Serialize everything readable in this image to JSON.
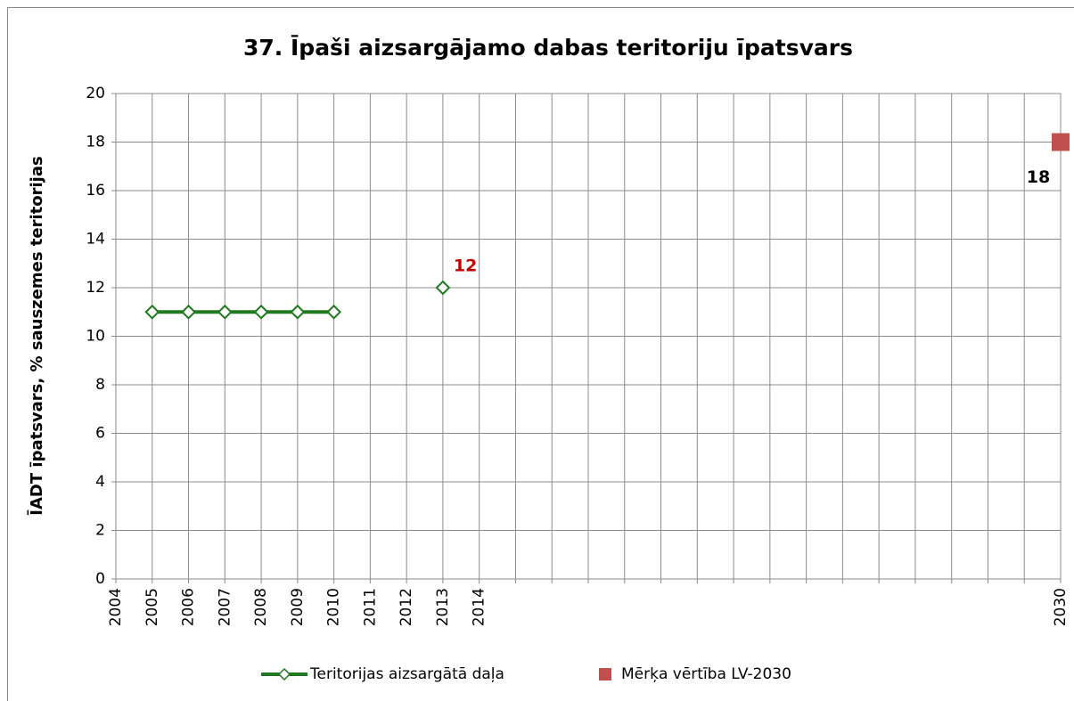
{
  "chart_data": {
    "type": "line",
    "title": "37. Īpaši aizsargājamo dabas teritoriju īpatsvars",
    "y_label": "ĪADT īpatsvars, % sauszemes teritorijas",
    "categories": [
      "2004",
      "2005",
      "2006",
      "2007",
      "2008",
      "2009",
      "2010",
      "2011",
      "2012",
      "2013",
      "2014",
      null,
      null,
      null,
      null,
      null,
      null,
      null,
      null,
      null,
      null,
      null,
      null,
      null,
      null,
      null,
      "2030"
    ],
    "series": [
      {
        "name": "Teritorijas aizsargātā daļa",
        "color": "#1f7a1f",
        "marker": "diamond",
        "values": [
          null,
          11,
          11,
          11,
          11,
          11,
          11,
          null,
          null,
          12,
          null,
          null,
          null,
          null,
          null,
          null,
          null,
          null,
          null,
          null,
          null,
          null,
          null,
          null,
          null,
          null,
          null
        ],
        "value_labels": [
          null,
          null,
          null,
          null,
          null,
          null,
          null,
          null,
          null,
          "12",
          null,
          null,
          null,
          null,
          null,
          null,
          null,
          null,
          null,
          null,
          null,
          null,
          null,
          null,
          null,
          null,
          null
        ],
        "label_color": "#c00000"
      },
      {
        "name": "Mērķa vērtība LV-2030",
        "color": "#c0504d",
        "marker": "square",
        "values": [
          null,
          null,
          null,
          null,
          null,
          null,
          null,
          null,
          null,
          null,
          null,
          null,
          null,
          null,
          null,
          null,
          null,
          null,
          null,
          null,
          null,
          null,
          null,
          null,
          null,
          null,
          18
        ],
        "value_labels": [
          null,
          null,
          null,
          null,
          null,
          null,
          null,
          null,
          null,
          null,
          null,
          null,
          null,
          null,
          null,
          null,
          null,
          null,
          null,
          null,
          null,
          null,
          null,
          null,
          null,
          null,
          "18"
        ],
        "label_color": "#000000"
      }
    ],
    "ylim": [
      0,
      20
    ],
    "yticks": [
      0,
      2,
      4,
      6,
      8,
      10,
      12,
      14,
      16,
      18,
      20
    ],
    "grid": true,
    "legend": "bottom"
  }
}
